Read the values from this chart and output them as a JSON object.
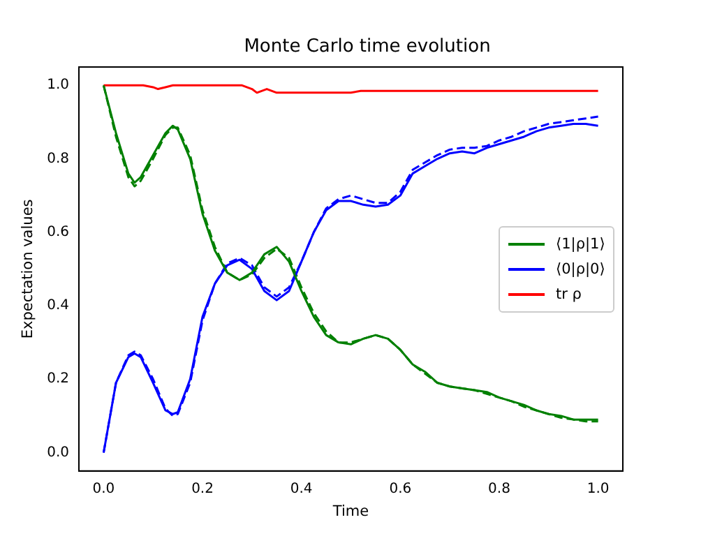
{
  "chart_data": {
    "type": "line",
    "title": "Monte Carlo time evolution",
    "xlabel": "Time",
    "ylabel": "Expectation values",
    "x": [
      0,
      0.025,
      0.05,
      0.0625,
      0.075,
      0.1,
      0.125,
      0.14,
      0.15,
      0.175,
      0.2,
      0.225,
      0.25,
      0.275,
      0.3,
      0.325,
      0.35,
      0.375,
      0.4,
      0.425,
      0.45,
      0.475,
      0.5,
      0.525,
      0.55,
      0.575,
      0.6,
      0.625,
      0.65,
      0.675,
      0.7,
      0.725,
      0.75,
      0.775,
      0.8,
      0.825,
      0.85,
      0.875,
      0.9,
      0.925,
      0.95,
      0.975,
      1.0
    ],
    "series": [
      {
        "name": "⟨1|ρ|1⟩",
        "color": "#008000",
        "values": [
          1.0,
          0.87,
          0.76,
          0.735,
          0.75,
          0.81,
          0.87,
          0.89,
          0.88,
          0.8,
          0.65,
          0.55,
          0.49,
          0.47,
          0.49,
          0.54,
          0.56,
          0.52,
          0.44,
          0.37,
          0.32,
          0.3,
          0.295,
          0.31,
          0.32,
          0.31,
          0.28,
          0.24,
          0.22,
          0.19,
          0.18,
          0.175,
          0.17,
          0.165,
          0.15,
          0.14,
          0.13,
          0.115,
          0.105,
          0.1,
          0.09,
          0.09,
          0.09
        ]
      },
      {
        "name": "⟨0|ρ|0⟩",
        "color": "#0000ff",
        "values": [
          0,
          0.19,
          0.26,
          0.27,
          0.26,
          0.19,
          0.115,
          0.105,
          0.11,
          0.2,
          0.37,
          0.46,
          0.51,
          0.525,
          0.5,
          0.44,
          0.415,
          0.44,
          0.52,
          0.6,
          0.66,
          0.685,
          0.685,
          0.675,
          0.67,
          0.675,
          0.7,
          0.76,
          0.78,
          0.8,
          0.815,
          0.82,
          0.815,
          0.83,
          0.84,
          0.85,
          0.86,
          0.875,
          0.885,
          0.89,
          0.895,
          0.895,
          0.89
        ]
      },
      {
        "name": "tr ρ",
        "color": "#ff0000",
        "x": [
          0,
          0.08,
          0.1,
          0.11,
          0.125,
          0.14,
          0.28,
          0.3,
          0.31,
          0.33,
          0.35,
          0.5,
          0.52,
          1.0
        ],
        "values": [
          1.0,
          1.0,
          0.995,
          0.99,
          0.995,
          1.0,
          1.0,
          0.99,
          0.98,
          0.99,
          0.98,
          0.98,
          0.985,
          0.985
        ]
      },
      {
        "color": "#008000",
        "line_style": "dashed",
        "values": [
          1.0,
          0.86,
          0.75,
          0.725,
          0.74,
          0.8,
          0.865,
          0.885,
          0.885,
          0.81,
          0.66,
          0.56,
          0.49,
          0.47,
          0.485,
          0.53,
          0.555,
          0.53,
          0.45,
          0.38,
          0.33,
          0.3,
          0.3,
          0.31,
          0.32,
          0.31,
          0.28,
          0.24,
          0.215,
          0.19,
          0.18,
          0.175,
          0.17,
          0.16,
          0.15,
          0.14,
          0.125,
          0.115,
          0.105,
          0.095,
          0.09,
          0.085,
          0.085
        ]
      },
      {
        "color": "#0000ff",
        "line_style": "dashed",
        "values": [
          0,
          0.19,
          0.265,
          0.275,
          0.265,
          0.2,
          0.12,
          0.1,
          0.105,
          0.19,
          0.36,
          0.46,
          0.515,
          0.53,
          0.51,
          0.45,
          0.425,
          0.45,
          0.52,
          0.6,
          0.665,
          0.69,
          0.7,
          0.69,
          0.68,
          0.68,
          0.71,
          0.77,
          0.79,
          0.81,
          0.825,
          0.83,
          0.83,
          0.835,
          0.85,
          0.86,
          0.875,
          0.885,
          0.895,
          0.9,
          0.905,
          0.91,
          0.915
        ]
      }
    ],
    "xlim": [
      -0.05,
      1.05
    ],
    "ylim": [
      -0.05,
      1.05
    ],
    "xticks": [
      {
        "value": 0,
        "label": "0.0"
      },
      0.2,
      0.4,
      0.6,
      0.8,
      {
        "value": 1,
        "label": "1.0"
      }
    ],
    "yticks": [
      {
        "value": 0,
        "label": "0.0"
      },
      0.2,
      0.4,
      0.6,
      0.8,
      {
        "value": 1,
        "label": "1.0"
      }
    ],
    "legend": "right",
    "grid": false,
    "marker": "none",
    "line_style": "solid"
  }
}
